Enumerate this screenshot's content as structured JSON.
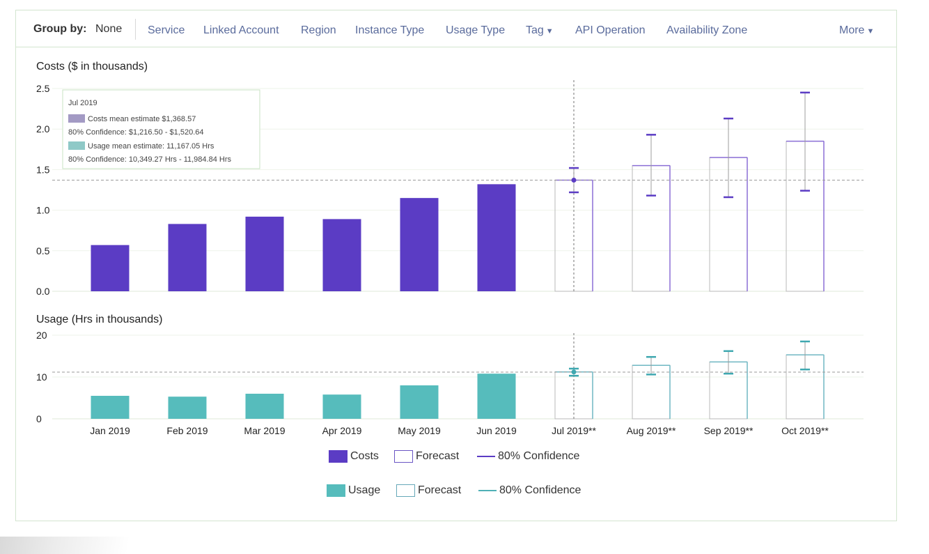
{
  "group_by": {
    "label": "Group by:",
    "value": "None",
    "options": [
      "Service",
      "Linked Account",
      "Region",
      "Instance Type",
      "Usage Type",
      "Tag",
      "API Operation",
      "Availability Zone"
    ],
    "more_label": "More"
  },
  "colors": {
    "costs": "#5b3cc4",
    "usage": "#56bcbc",
    "link": "#5a6b9c",
    "panel_border": "#d3e5cf"
  },
  "chart_data": [
    {
      "type": "bar",
      "title": "Costs ($ in thousands)",
      "xlabel": "",
      "ylabel": "Costs ($ in thousands)",
      "ylim": [
        0,
        2.5
      ],
      "yticks": [
        "0.0",
        "0.5",
        "1.0",
        "1.5",
        "2.0",
        "2.5"
      ],
      "categories": [
        "Jan 2019",
        "Feb 2019",
        "Mar 2019",
        "Apr 2019",
        "May 2019",
        "Jun 2019",
        "Jul 2019**",
        "Aug 2019**",
        "Sep 2019**",
        "Oct 2019**"
      ],
      "series": [
        {
          "name": "Costs",
          "values": [
            0.57,
            0.83,
            0.92,
            0.89,
            1.15,
            1.32,
            null,
            null,
            null,
            null
          ]
        },
        {
          "name": "Forecast",
          "values": [
            null,
            null,
            null,
            null,
            null,
            null,
            1.37,
            1.55,
            1.65,
            1.85
          ]
        },
        {
          "name": "80% Confidence",
          "low": [
            null,
            null,
            null,
            null,
            null,
            null,
            1.22,
            1.18,
            1.16,
            1.24
          ],
          "high": [
            null,
            null,
            null,
            null,
            null,
            null,
            1.52,
            1.93,
            2.13,
            2.45
          ]
        }
      ],
      "reference_value": 1.37
    },
    {
      "type": "bar",
      "title": "Usage (Hrs in thousands)",
      "xlabel": "",
      "ylabel": "Usage (Hrs in thousands)",
      "ylim": [
        0,
        20
      ],
      "yticks": [
        "0",
        "10",
        "20"
      ],
      "categories": [
        "Jan 2019",
        "Feb 2019",
        "Mar 2019",
        "Apr 2019",
        "May 2019",
        "Jun 2019",
        "Jul 2019**",
        "Aug 2019**",
        "Sep 2019**",
        "Oct 2019**"
      ],
      "series": [
        {
          "name": "Usage",
          "values": [
            5.5,
            5.3,
            6.0,
            5.8,
            8.0,
            10.8,
            null,
            null,
            null,
            null
          ]
        },
        {
          "name": "Forecast",
          "values": [
            null,
            null,
            null,
            null,
            null,
            null,
            11.2,
            12.8,
            13.6,
            15.3
          ]
        },
        {
          "name": "80% Confidence",
          "low": [
            null,
            null,
            null,
            null,
            null,
            null,
            10.3,
            10.6,
            10.8,
            11.8
          ],
          "high": [
            null,
            null,
            null,
            null,
            null,
            null,
            12.0,
            14.8,
            16.2,
            18.5
          ]
        }
      ],
      "reference_value": 11.17
    }
  ],
  "tooltip": {
    "title": "Jul 2019",
    "costs_line": "Costs mean estimate $1,368.57",
    "costs_conf": "80% Confidence: $1,216.50 - $1,520.64",
    "usage_line": "Usage mean estimate: 11,167.05 Hrs",
    "usage_conf": "80% Confidence: 10,349.27 Hrs - 11,984.84 Hrs"
  },
  "legend_costs": {
    "actual": "Costs",
    "forecast": "Forecast",
    "confidence": "80% Confidence"
  },
  "legend_usage": {
    "actual": "Usage",
    "forecast": "Forecast",
    "confidence": "80% Confidence"
  }
}
